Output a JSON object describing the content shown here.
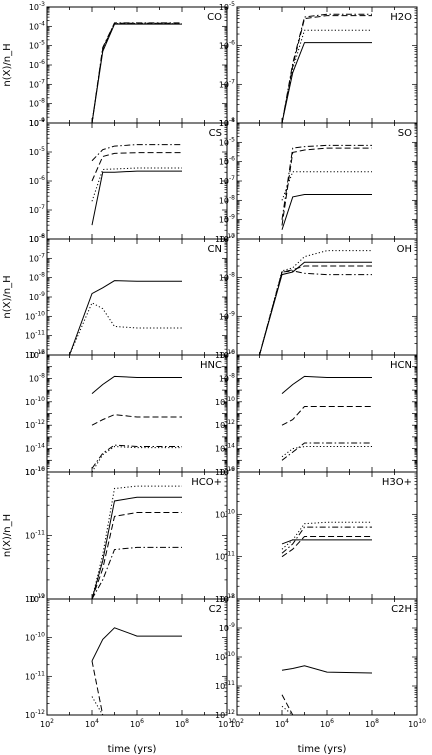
{
  "chart_data": {
    "type": "line",
    "x_scale": "log",
    "y_scale": "log",
    "xlim": [
      100,
      10000000000.0
    ],
    "x_tick_values": [
      100,
      10000,
      1000000,
      100000000,
      10000000000
    ],
    "xlabel": "time (yrs)",
    "ylabel": "n(X)/n_H",
    "x": [
      1000,
      10000,
      30000,
      100000,
      1000000,
      100000000
    ],
    "series_styles": [
      "solid",
      "dotted",
      "dashed",
      "dashdot"
    ],
    "panels": [
      {
        "title": "CO",
        "ylim": [
          1e-09,
          0.001
        ],
        "y_tick_exps": [
          -9,
          -8,
          -7,
          -6,
          -5,
          -4,
          -3
        ],
        "series": [
          {
            "values": [
              null,
              1e-09,
              5e-06,
              0.00013,
              0.00013,
              0.00013
            ]
          },
          {
            "values": [
              null,
              1e-09,
              6e-06,
              0.00014,
              0.00014,
              0.00014
            ]
          },
          {
            "values": [
              null,
              1e-09,
              7e-06,
              0.000145,
              0.000145,
              0.000145
            ]
          },
          {
            "values": [
              null,
              1e-09,
              8e-06,
              0.00015,
              0.00015,
              0.00015
            ]
          }
        ]
      },
      {
        "title": "H2O",
        "ylim": [
          1e-08,
          1e-05
        ],
        "y_tick_exps": [
          -8,
          -7,
          -6,
          -5
        ],
        "series": [
          {
            "values": [
              null,
              1e-08,
              2e-07,
              1.2e-06,
              1.2e-06,
              1.2e-06
            ]
          },
          {
            "values": [
              null,
              1e-08,
              2.5e-07,
              2.5e-06,
              2.5e-06,
              2.5e-06
            ]
          },
          {
            "values": [
              null,
              1e-08,
              3e-07,
              5e-06,
              6e-06,
              6e-06
            ]
          },
          {
            "values": [
              null,
              1e-08,
              3.5e-07,
              5.5e-06,
              6.5e-06,
              6.5e-06
            ]
          }
        ]
      },
      {
        "title": "CS",
        "ylim": [
          1e-08,
          0.0001
        ],
        "y_tick_exps": [
          -8,
          -7,
          -6,
          -5,
          -4
        ],
        "series": [
          {
            "values": [
              null,
              3e-08,
              2e-06,
              2e-06,
              2.2e-06,
              2.2e-06
            ]
          },
          {
            "values": [
              null,
              2e-07,
              2.5e-06,
              2.6e-06,
              2.8e-06,
              2.8e-06
            ]
          },
          {
            "values": [
              null,
              1e-06,
              7e-06,
              9e-06,
              9.5e-06,
              9.5e-06
            ]
          },
          {
            "values": [
              null,
              5e-06,
              1.2e-05,
              1.6e-05,
              1.8e-05,
              1.8e-05
            ]
          }
        ]
      },
      {
        "title": "SO",
        "ylim": [
          1e-10,
          0.0001
        ],
        "y_tick_exps": [
          -10,
          -9,
          -8,
          -7,
          -6,
          -5,
          -4
        ],
        "series": [
          {
            "values": [
              null,
              3e-10,
              1.5e-08,
              2e-08,
              2e-08,
              2e-08
            ]
          },
          {
            "values": [
              null,
              1e-08,
              3e-07,
              3e-07,
              3e-07,
              3e-07
            ]
          },
          {
            "values": [
              null,
              5e-10,
              3e-06,
              4e-06,
              5e-06,
              5e-06
            ]
          },
          {
            "values": [
              null,
              1e-09,
              5e-06,
              6e-06,
              7e-06,
              7e-06
            ]
          }
        ]
      },
      {
        "title": "CN",
        "ylim": [
          1e-12,
          1e-06
        ],
        "y_tick_exps": [
          -12,
          -11,
          -10,
          -9,
          -8,
          -7,
          -6
        ],
        "series": [
          {
            "values": [
              1e-12,
              1.5e-09,
              3e-09,
              7e-09,
              6.5e-09,
              6.5e-09
            ]
          },
          {
            "values": [
              1e-12,
              5e-10,
              2.5e-10,
              3e-11,
              2.5e-11,
              2.5e-11
            ]
          }
        ]
      },
      {
        "title": "OH",
        "ylim": [
          1e-10,
          1e-07
        ],
        "y_tick_exps": [
          -10,
          -9,
          -8,
          -7
        ],
        "series": [
          {
            "values": [
              1e-10,
              1.2e-08,
              1.4e-08,
              2.5e-08,
              2.5e-08,
              2.5e-08
            ]
          },
          {
            "values": [
              1e-10,
              1.5e-08,
              1.8e-08,
              3.5e-08,
              5e-08,
              5e-08
            ]
          },
          {
            "values": [
              1e-10,
              1.4e-08,
              1.6e-08,
              2e-08,
              2e-08,
              2e-08
            ]
          },
          {
            "values": [
              1e-10,
              1.4e-08,
              1.5e-08,
              1.3e-08,
              1.2e-08,
              1.2e-08
            ]
          }
        ]
      },
      {
        "title": "HNC",
        "ylim": [
          1e-16,
          1e-06
        ],
        "y_tick_exps": [
          -16,
          -14,
          -12,
          -10,
          -8,
          -6
        ],
        "series": [
          {
            "values": [
              null,
              5e-10,
              3e-09,
              1.5e-08,
              1.2e-08,
              1.2e-08
            ]
          },
          {
            "values": [
              null,
              1e-16,
              3e-15,
              1.5e-14,
              1.2e-14,
              1.2e-14
            ]
          },
          {
            "values": [
              null,
              1e-12,
              3e-12,
              8e-12,
              5e-12,
              5e-12
            ]
          },
          {
            "values": [
              null,
              2e-16,
              4e-15,
              2e-14,
              1.5e-14,
              1.5e-14
            ]
          }
        ]
      },
      {
        "title": "HCN",
        "ylim": [
          1e-16,
          1e-06
        ],
        "y_tick_exps": [
          -16,
          -14,
          -12,
          -10,
          -8,
          -6
        ],
        "series": [
          {
            "values": [
              null,
              5e-10,
              3e-09,
              1.5e-08,
              1.2e-08,
              1.2e-08
            ]
          },
          {
            "values": [
              null,
              2e-15,
              1e-14,
              1.5e-14,
              1.5e-14,
              1.5e-14
            ]
          },
          {
            "values": [
              null,
              1e-12,
              3e-12,
              4e-11,
              4e-11,
              4e-11
            ]
          },
          {
            "values": [
              null,
              1e-15,
              5e-15,
              3e-14,
              3e-14,
              3e-14
            ]
          }
        ]
      },
      {
        "title": "HCO+",
        "ylim": [
          1e-12,
          1e-10
        ],
        "y_tick_exps": [
          -12,
          -11,
          -10
        ],
        "series": [
          {
            "values": [
              null,
              1e-12,
              4e-12,
              3.5e-11,
              4e-11,
              4e-11
            ]
          },
          {
            "values": [
              null,
              1e-12,
              5e-12,
              5.5e-11,
              6e-11,
              6e-11
            ]
          },
          {
            "values": [
              null,
              1e-12,
              3e-12,
              2e-11,
              2.3e-11,
              2.3e-11
            ]
          },
          {
            "values": [
              null,
              1e-12,
              2e-12,
              6e-12,
              6.5e-12,
              6.5e-12
            ]
          }
        ]
      },
      {
        "title": "H3O+",
        "ylim": [
          1e-12,
          1e-09
        ],
        "y_tick_exps": [
          -12,
          -11,
          -10,
          -9
        ],
        "series": [
          {
            "values": [
              null,
              2e-11,
              2.5e-11,
              2.5e-11,
              2.5e-11,
              2.5e-11
            ]
          },
          {
            "values": [
              null,
              1.5e-11,
              2.5e-11,
              6e-11,
              6.5e-11,
              6.5e-11
            ]
          },
          {
            "values": [
              null,
              1e-11,
              1.5e-11,
              3e-11,
              3e-11,
              3e-11
            ]
          },
          {
            "values": [
              null,
              1.2e-11,
              2e-11,
              5e-11,
              5e-11,
              5e-11
            ]
          }
        ]
      },
      {
        "title": "C2",
        "ylim": [
          1e-12,
          1e-09
        ],
        "y_tick_exps": [
          -12,
          -11,
          -10,
          -9
        ],
        "series": [
          {
            "values": [
              null,
              2.5e-11,
              9e-11,
              1.8e-10,
              1.1e-10,
              1.1e-10
            ]
          },
          {
            "values": [
              null,
              3e-12,
              1e-12,
              null,
              null,
              null
            ]
          },
          {
            "values": [
              null,
              2.5e-11,
              1e-12,
              null,
              null,
              null
            ]
          }
        ]
      },
      {
        "title": "C2H",
        "ylim": [
          1e-12,
          1e-08
        ],
        "y_tick_exps": [
          -12,
          -11,
          -10,
          -9,
          -8
        ],
        "series": [
          {
            "values": [
              null,
              3.5e-11,
              4e-11,
              5e-11,
              3e-11,
              2.8e-11
            ]
          },
          {
            "values": [
              null,
              2e-12,
              1e-12,
              null,
              null,
              null
            ]
          },
          {
            "values": [
              null,
              5e-12,
              1e-12,
              null,
              null,
              null
            ]
          }
        ]
      }
    ]
  }
}
